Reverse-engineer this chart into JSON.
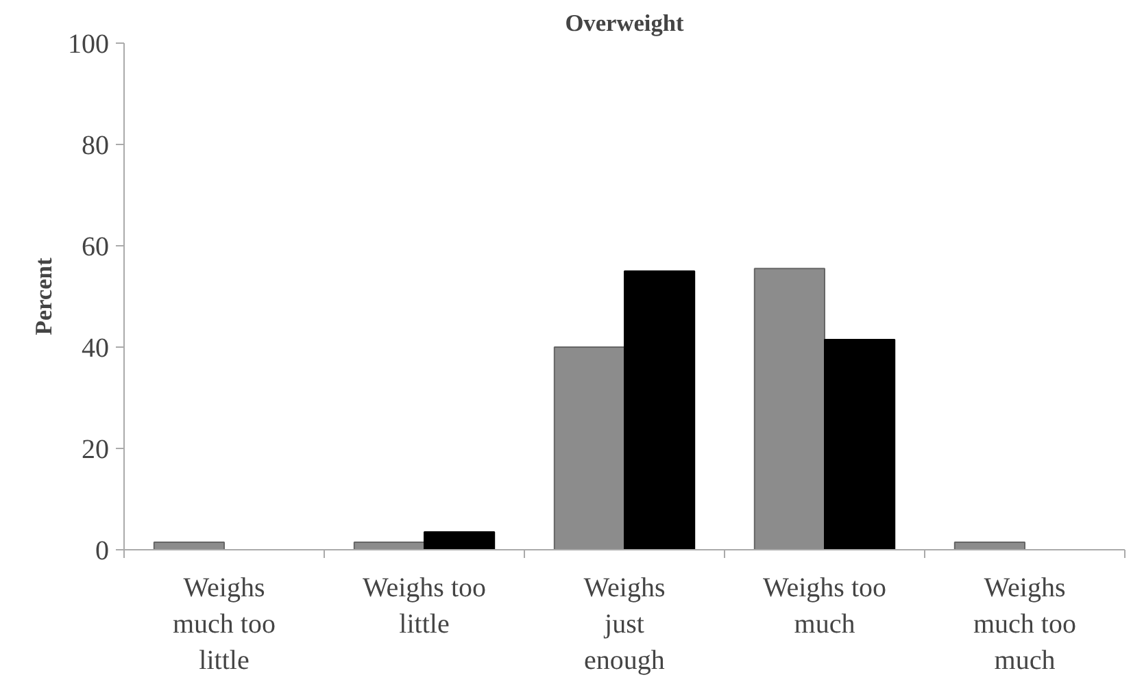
{
  "chart_data": {
    "type": "bar",
    "title": "Overweight",
    "ylabel": "Percent",
    "categories": [
      "Weighs much too little",
      "Weighs too little",
      "Weighs just enough",
      "Weighs too much",
      "Weighs much too much"
    ],
    "series": [
      {
        "color": "#8c8c8c",
        "values": [
          1.5,
          1.5,
          40,
          55.5,
          1.5
        ]
      },
      {
        "color": "#000000",
        "values": [
          null,
          3.5,
          55,
          41.5,
          null
        ]
      }
    ],
    "ylim": [
      0,
      100
    ],
    "yticks": [
      0,
      20,
      40,
      60,
      80,
      100
    ],
    "grid": false
  }
}
